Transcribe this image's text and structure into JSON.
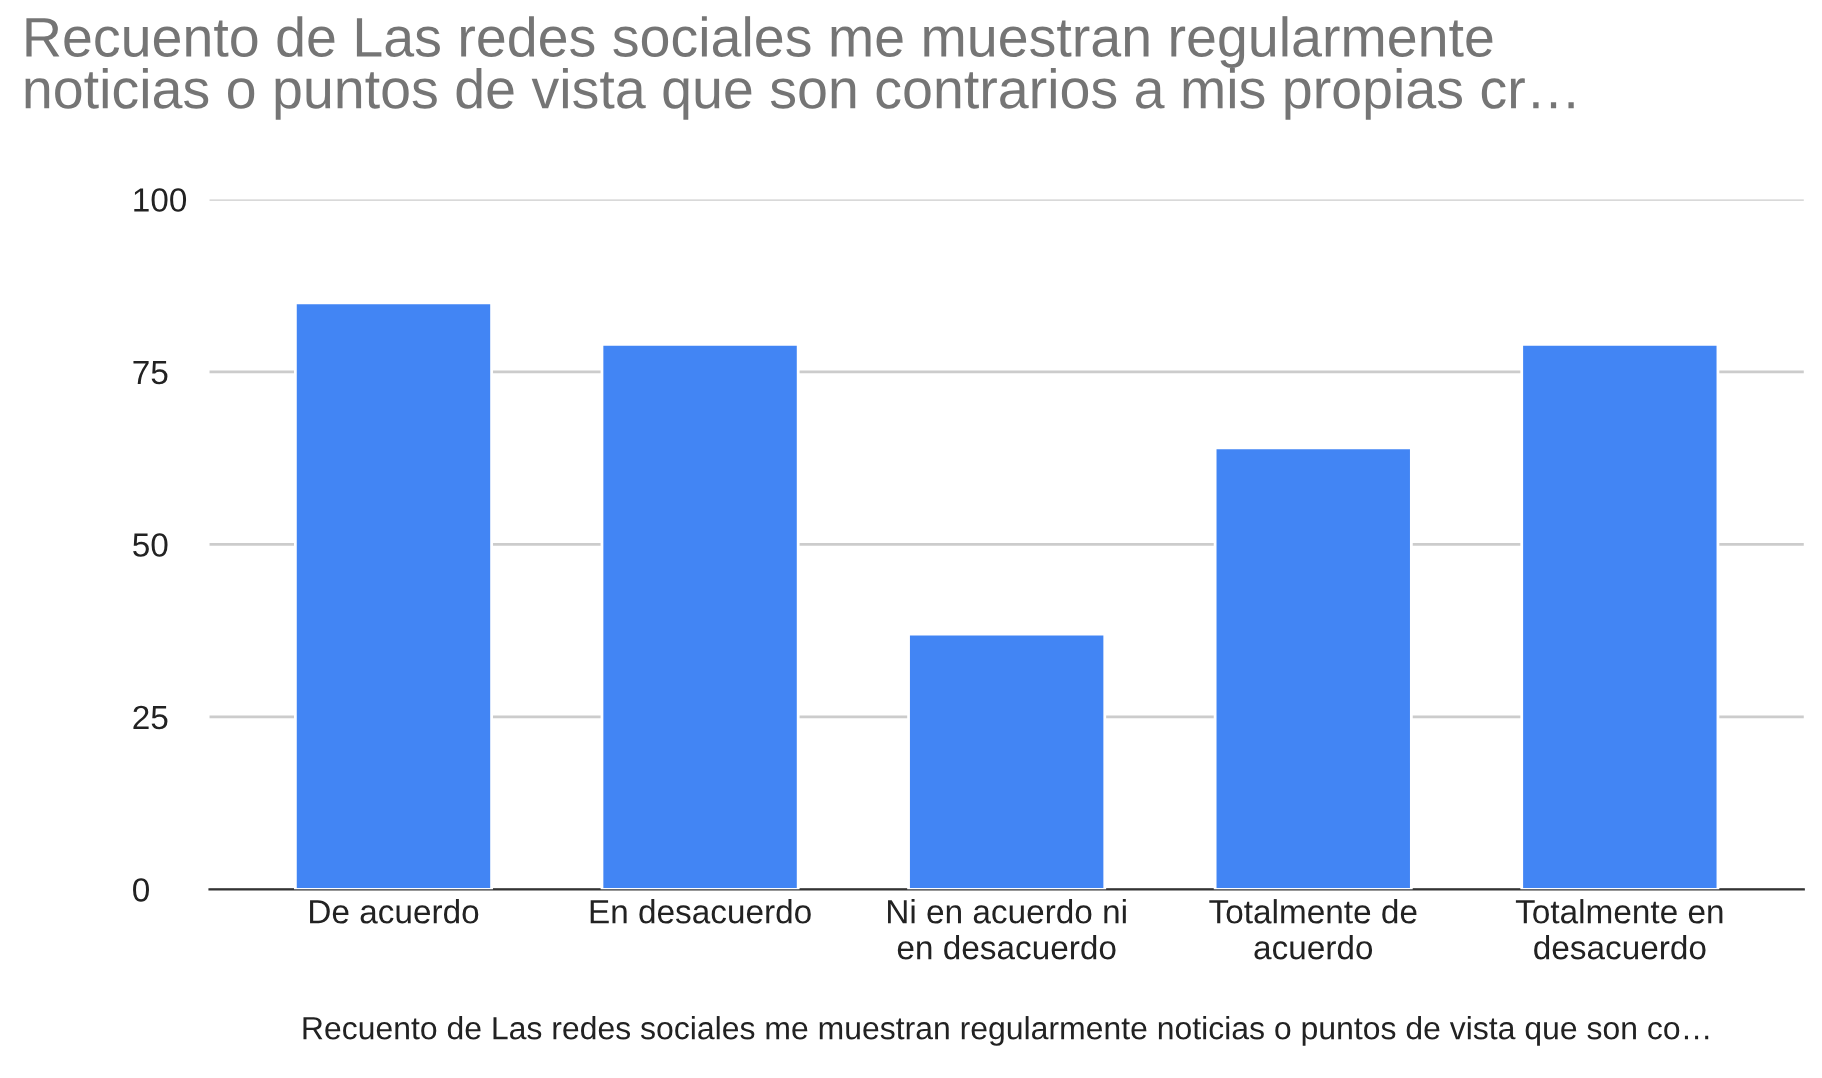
{
  "chart_data": {
    "type": "bar",
    "title": "Recuento de Las redes sociales me muestran regularmente\nnoticias o puntos de vista que son contrarios a mis propias cr…",
    "xlabel": "Recuento de Las redes sociales me muestran regularmente noticias o puntos de vista que son co…",
    "categories": [
      "De acuerdo",
      "En desacuerdo",
      "Ni en acuerdo ni\nen desacuerdo",
      "Totalmente de\nacuerdo",
      "Totalmente en\ndesacuerdo"
    ],
    "values": [
      85,
      79,
      37,
      64,
      79
    ],
    "color": "#4285f4",
    "ylim": [
      0,
      100
    ],
    "yticks": [
      0,
      25,
      50,
      75,
      100
    ],
    "grid": "y"
  }
}
